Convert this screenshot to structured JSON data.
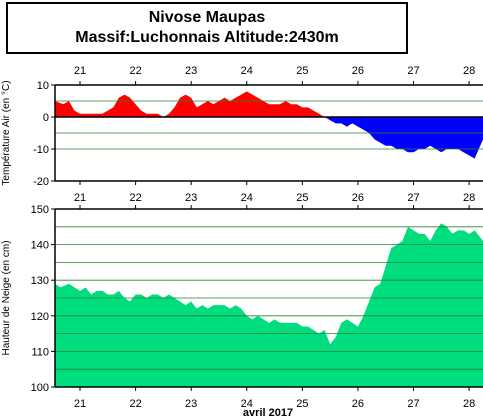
{
  "title": "Nivose Maupas",
  "subtitle": "Massif:Luchonnais Altitude:2430m",
  "x_axis_label": "avril 2017",
  "colors": {
    "positive": "#ff0000",
    "negative": "#0000ff",
    "snow": "#00dd7f",
    "grid": "#2f7f2f"
  },
  "chart_data": [
    {
      "type": "area",
      "ylabel": "Température Air (en °C)",
      "xlim": [
        20.55,
        28.25
      ],
      "ylim": [
        -20,
        10
      ],
      "yticks": [
        -20,
        -10,
        0,
        10
      ],
      "xticks": [
        21,
        22,
        23,
        24,
        25,
        26,
        27,
        28
      ],
      "hlines": [
        5,
        -5,
        -10
      ],
      "grid": true,
      "x": [
        20.55,
        20.7,
        20.8,
        20.9,
        21.0,
        21.1,
        21.2,
        21.3,
        21.4,
        21.5,
        21.6,
        21.7,
        21.8,
        21.9,
        22.0,
        22.1,
        22.2,
        22.3,
        22.4,
        22.5,
        22.6,
        22.7,
        22.8,
        22.9,
        23.0,
        23.1,
        23.2,
        23.3,
        23.4,
        23.5,
        23.6,
        23.7,
        23.8,
        23.9,
        24.0,
        24.1,
        24.2,
        24.3,
        24.4,
        24.5,
        24.6,
        24.7,
        24.8,
        24.9,
        25.0,
        25.1,
        25.2,
        25.3,
        25.4,
        25.5,
        25.6,
        25.7,
        25.8,
        25.9,
        26.0,
        26.1,
        26.2,
        26.3,
        26.4,
        26.5,
        26.6,
        26.7,
        26.8,
        26.9,
        27.0,
        27.1,
        27.2,
        27.3,
        27.4,
        27.5,
        27.6,
        27.7,
        27.8,
        27.9,
        28.0,
        28.1,
        28.2,
        28.25
      ],
      "values": [
        5,
        4,
        5,
        2,
        1,
        1,
        1,
        1,
        1,
        2,
        3,
        6,
        7,
        6,
        4,
        2,
        1,
        1,
        1,
        0,
        1,
        3,
        6,
        7,
        6,
        3,
        4,
        5,
        4,
        5,
        6,
        5,
        6,
        7,
        8,
        7,
        6,
        5,
        4,
        4,
        4,
        5,
        4,
        4,
        3,
        3,
        2,
        1,
        0,
        -1,
        -2,
        -2,
        -3,
        -2,
        -3,
        -4,
        -5,
        -7,
        -8,
        -9,
        -9,
        -10,
        -10,
        -11,
        -11,
        -10,
        -10,
        -9,
        -10,
        -11,
        -10,
        -10,
        -10,
        -11,
        -12,
        -13,
        -9,
        -7
      ]
    },
    {
      "type": "area",
      "ylabel": "Hauteur de Neige (en cm)",
      "xlim": [
        20.55,
        28.25
      ],
      "ylim": [
        100,
        150
      ],
      "yticks": [
        100,
        110,
        120,
        130,
        140,
        150
      ],
      "xticks": [
        21,
        22,
        23,
        24,
        25,
        26,
        27,
        28
      ],
      "hlines": [
        145,
        140,
        135,
        130,
        125,
        120,
        115,
        110,
        105
      ],
      "grid": true,
      "x": [
        20.55,
        20.65,
        20.8,
        20.9,
        21.0,
        21.1,
        21.2,
        21.3,
        21.4,
        21.5,
        21.6,
        21.7,
        21.8,
        21.9,
        22.0,
        22.1,
        22.2,
        22.3,
        22.4,
        22.5,
        22.6,
        22.7,
        22.8,
        22.9,
        23.0,
        23.1,
        23.2,
        23.3,
        23.4,
        23.5,
        23.6,
        23.7,
        23.8,
        23.9,
        24.0,
        24.1,
        24.2,
        24.3,
        24.4,
        24.5,
        24.6,
        24.7,
        24.8,
        24.9,
        25.0,
        25.1,
        25.2,
        25.3,
        25.4,
        25.5,
        25.6,
        25.7,
        25.8,
        25.9,
        26.0,
        26.1,
        26.2,
        26.3,
        26.4,
        26.5,
        26.6,
        26.7,
        26.8,
        26.9,
        27.0,
        27.1,
        27.2,
        27.3,
        27.4,
        27.5,
        27.6,
        27.7,
        27.8,
        27.9,
        28.0,
        28.1,
        28.2,
        28.25
      ],
      "values": [
        129,
        128,
        129,
        128,
        127,
        128,
        126,
        127,
        127,
        126,
        126,
        127,
        125,
        124,
        126,
        126,
        125,
        126,
        126,
        125,
        126,
        125,
        124,
        123,
        124,
        122,
        123,
        122,
        123,
        123,
        123,
        122,
        123,
        122,
        120,
        119,
        120,
        119,
        118,
        119,
        118,
        118,
        118,
        118,
        117,
        117,
        116,
        115,
        116,
        112,
        114,
        118,
        119,
        118,
        117,
        120,
        124,
        128,
        129,
        134,
        139,
        140,
        141,
        145,
        144,
        143,
        143,
        141,
        144,
        146,
        145,
        143,
        144,
        144,
        143,
        144,
        142,
        141
      ]
    }
  ]
}
